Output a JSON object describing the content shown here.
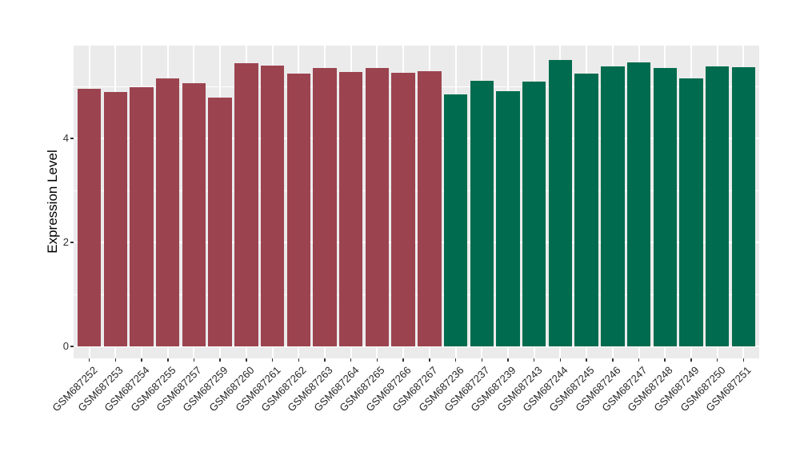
{
  "chart_data": {
    "type": "bar",
    "title": "",
    "xlabel": "",
    "ylabel": "Expression Level",
    "yticks": [
      0,
      2,
      4
    ],
    "ylim": [
      0,
      5.78
    ],
    "grid": "on",
    "legend": "none",
    "panel_bg": "#EBEBEB",
    "grid_color": "#FFFFFF",
    "categories": [
      "GSM687252",
      "GSM687253",
      "GSM687254",
      "GSM687255",
      "GSM687257",
      "GSM687259",
      "GSM687260",
      "GSM687261",
      "GSM687262",
      "GSM687263",
      "GSM687264",
      "GSM687265",
      "GSM687266",
      "GSM687267",
      "GSM687236",
      "GSM687237",
      "GSM687239",
      "GSM687243",
      "GSM687244",
      "GSM687245",
      "GSM687246",
      "GSM687247",
      "GSM687248",
      "GSM687249",
      "GSM687250",
      "GSM687251"
    ],
    "values": [
      4.96,
      4.9,
      4.98,
      5.16,
      5.06,
      4.79,
      5.45,
      5.4,
      5.25,
      5.36,
      5.28,
      5.35,
      5.26,
      5.29,
      4.85,
      5.11,
      4.91,
      5.1,
      5.51,
      5.24,
      5.39,
      5.46,
      5.35,
      5.16,
      5.38,
      5.37
    ],
    "bar_colors": [
      "#9B4450",
      "#9B4450",
      "#9B4450",
      "#9B4450",
      "#9B4450",
      "#9B4450",
      "#9B4450",
      "#9B4450",
      "#9B4450",
      "#9B4450",
      "#9B4450",
      "#9B4450",
      "#9B4450",
      "#9B4450",
      "#006B4E",
      "#006B4E",
      "#006B4E",
      "#006B4E",
      "#006B4E",
      "#006B4E",
      "#006B4E",
      "#006B4E",
      "#006B4E",
      "#006B4E",
      "#006B4E",
      "#006B4E"
    ],
    "color_groups": [
      {
        "color": "#9B4450",
        "first_category": "GSM687252",
        "last_category": "GSM687267",
        "count": 14
      },
      {
        "color": "#006B4E",
        "first_category": "GSM687236",
        "last_category": "GSM687251",
        "count": 12
      }
    ]
  }
}
